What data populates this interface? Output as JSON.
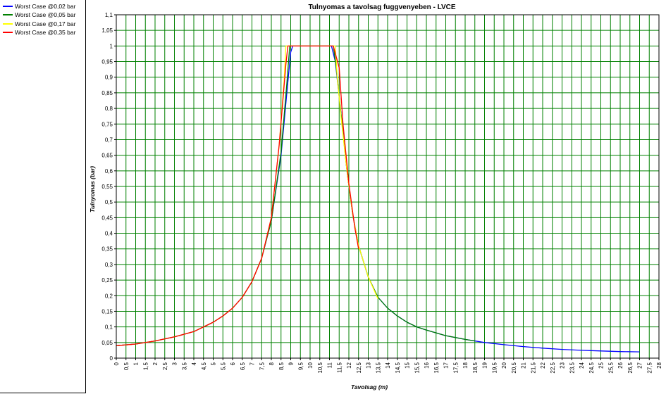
{
  "chart_data": {
    "type": "line",
    "title": "Tulnyomas a tavolsag fuggvenyeben - LVCE",
    "xlabel": "Tavolsag (m)",
    "ylabel": "Tulnyomas (bar)",
    "xlim": [
      0,
      28
    ],
    "ylim": [
      0,
      1.1
    ],
    "x_step": 0.5,
    "y_step": 0.05,
    "grid": true,
    "grid_color": "#008000",
    "legend_position": "left-panel",
    "x_ticks": [
      "0",
      "0,5",
      "1",
      "1,5",
      "2",
      "2,5",
      "3",
      "3,5",
      "4",
      "4,5",
      "5",
      "5,5",
      "6",
      "6,5",
      "7",
      "7,5",
      "8",
      "8,5",
      "9",
      "9,5",
      "10",
      "10,5",
      "11",
      "11,5",
      "12",
      "12,5",
      "13",
      "13,5",
      "14",
      "14,5",
      "15",
      "15,5",
      "16",
      "16,5",
      "17",
      "17,5",
      "18",
      "18,5",
      "19",
      "19,5",
      "20",
      "20,5",
      "21",
      "21,5",
      "22",
      "22,5",
      "23",
      "23,5",
      "24",
      "24,5",
      "25",
      "25,5",
      "26",
      "26,5",
      "27",
      "27,5",
      "28"
    ],
    "y_ticks": [
      "0",
      "0,05",
      "0,1",
      "0,15",
      "0,2",
      "0,25",
      "0,3",
      "0,35",
      "0,4",
      "0,45",
      "0,5",
      "0,55",
      "0,6",
      "0,65",
      "0,7",
      "0,75",
      "0,8",
      "0,85",
      "0,9",
      "0,95",
      "1",
      "1,05",
      "1,1"
    ],
    "series": [
      {
        "name": "Worst Case @0,02 bar",
        "color": "#0000ff",
        "points": [
          [
            0,
            0.04
          ],
          [
            1,
            0.045
          ],
          [
            2,
            0.055
          ],
          [
            3,
            0.068
          ],
          [
            4,
            0.085
          ],
          [
            5,
            0.115
          ],
          [
            5.5,
            0.135
          ],
          [
            6,
            0.16
          ],
          [
            6.5,
            0.195
          ],
          [
            7,
            0.245
          ],
          [
            7.5,
            0.32
          ],
          [
            8,
            0.44
          ],
          [
            8.5,
            0.65
          ],
          [
            8.8,
            0.85
          ],
          [
            9,
            0.98
          ],
          [
            9.1,
            1.0
          ],
          [
            11.1,
            1.0
          ],
          [
            11.3,
            0.95
          ],
          [
            11.6,
            0.78
          ],
          [
            11.9,
            0.6
          ],
          [
            12.2,
            0.46
          ],
          [
            12.5,
            0.36
          ],
          [
            13,
            0.26
          ],
          [
            13.5,
            0.195
          ],
          [
            14,
            0.16
          ],
          [
            14.5,
            0.135
          ],
          [
            15,
            0.115
          ],
          [
            15.5,
            0.1
          ],
          [
            16,
            0.09
          ],
          [
            17,
            0.072
          ],
          [
            18,
            0.06
          ],
          [
            19,
            0.05
          ],
          [
            20,
            0.043
          ],
          [
            21,
            0.037
          ],
          [
            22,
            0.032
          ],
          [
            23,
            0.028
          ],
          [
            24,
            0.025
          ],
          [
            25,
            0.023
          ],
          [
            26,
            0.021
          ],
          [
            27,
            0.02
          ]
        ]
      },
      {
        "name": "Worst Case @0,05 bar",
        "color": "#008000",
        "points": [
          [
            0,
            0.04
          ],
          [
            1,
            0.045
          ],
          [
            2,
            0.055
          ],
          [
            3,
            0.068
          ],
          [
            4,
            0.085
          ],
          [
            5,
            0.115
          ],
          [
            5.5,
            0.135
          ],
          [
            6,
            0.16
          ],
          [
            6.5,
            0.195
          ],
          [
            7,
            0.245
          ],
          [
            7.5,
            0.32
          ],
          [
            8,
            0.44
          ],
          [
            8.5,
            0.66
          ],
          [
            8.8,
            0.88
          ],
          [
            8.95,
            1.0
          ],
          [
            11.2,
            1.0
          ],
          [
            11.35,
            0.93
          ],
          [
            11.6,
            0.78
          ],
          [
            11.9,
            0.6
          ],
          [
            12.2,
            0.46
          ],
          [
            12.5,
            0.36
          ],
          [
            13,
            0.26
          ],
          [
            13.5,
            0.195
          ],
          [
            14,
            0.16
          ],
          [
            14.5,
            0.135
          ],
          [
            15,
            0.115
          ],
          [
            15.5,
            0.1
          ],
          [
            16,
            0.09
          ],
          [
            17,
            0.072
          ],
          [
            18,
            0.06
          ],
          [
            18.5,
            0.055
          ]
        ]
      },
      {
        "name": "Worst Case @0,17 bar",
        "color": "#ffff00",
        "points": [
          [
            0,
            0.04
          ],
          [
            1,
            0.045
          ],
          [
            2,
            0.055
          ],
          [
            3,
            0.068
          ],
          [
            4,
            0.085
          ],
          [
            5,
            0.115
          ],
          [
            5.5,
            0.135
          ],
          [
            6,
            0.16
          ],
          [
            6.5,
            0.195
          ],
          [
            7,
            0.245
          ],
          [
            7.5,
            0.32
          ],
          [
            8,
            0.45
          ],
          [
            8.4,
            0.68
          ],
          [
            8.65,
            0.88
          ],
          [
            8.75,
            1.0
          ],
          [
            11.3,
            1.0
          ],
          [
            11.4,
            0.9
          ],
          [
            11.6,
            0.77
          ],
          [
            11.9,
            0.6
          ],
          [
            12.2,
            0.46
          ],
          [
            12.5,
            0.36
          ],
          [
            13,
            0.26
          ],
          [
            13.5,
            0.19
          ]
        ]
      },
      {
        "name": "Worst Case @0,35 bar",
        "color": "#ff0000",
        "points": [
          [
            0,
            0.04
          ],
          [
            1,
            0.045
          ],
          [
            2,
            0.055
          ],
          [
            3,
            0.068
          ],
          [
            4,
            0.085
          ],
          [
            5,
            0.115
          ],
          [
            5.5,
            0.135
          ],
          [
            6,
            0.16
          ],
          [
            6.5,
            0.195
          ],
          [
            7,
            0.245
          ],
          [
            7.5,
            0.32
          ],
          [
            8,
            0.45
          ],
          [
            8.4,
            0.68
          ],
          [
            8.75,
            0.94
          ],
          [
            8.85,
            1.0
          ],
          [
            11.2,
            1.0
          ],
          [
            11.5,
            0.93
          ],
          [
            11.7,
            0.75
          ],
          [
            12,
            0.56
          ],
          [
            12.3,
            0.42
          ],
          [
            12.5,
            0.35
          ]
        ]
      }
    ]
  }
}
